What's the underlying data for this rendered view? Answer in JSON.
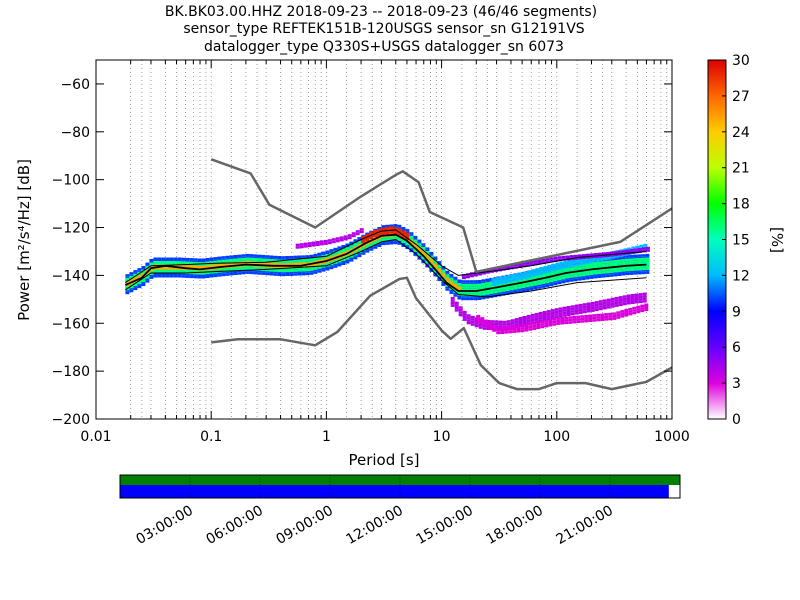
{
  "chart_data": [
    {
      "type": "heatmap",
      "title_lines": [
        "BK.BK03.00.HHZ   2018-09-23 -- 2018-09-23  (46/46 segments)",
        "sensor_type REFTEK151B-120USGS sensor_sn G12191VS",
        "datalogger_type Q330S+USGS datalogger_sn 6073"
      ],
      "xlabel": "Period [s]",
      "ylabel": "Power [m²/s⁴/Hz] [dB]",
      "x_scale": "log",
      "xlim": [
        0.01,
        1000
      ],
      "ylim": [
        -200,
        -50
      ],
      "x_ticks": [
        {
          "value": 0.01,
          "label": "0.01"
        },
        {
          "value": 0.1,
          "label": "0.1"
        },
        {
          "value": 1,
          "label": "1"
        },
        {
          "value": 10,
          "label": "10"
        },
        {
          "value": 100,
          "label": "100"
        },
        {
          "value": 1000,
          "label": "1000"
        }
      ],
      "y_ticks": [
        {
          "value": -60,
          "label": "−60"
        },
        {
          "value": -80,
          "label": "−80"
        },
        {
          "value": -100,
          "label": "−100"
        },
        {
          "value": -120,
          "label": "−120"
        },
        {
          "value": -140,
          "label": "−140"
        },
        {
          "value": -160,
          "label": "−160"
        },
        {
          "value": -180,
          "label": "−180"
        },
        {
          "value": -200,
          "label": "−200"
        }
      ],
      "grid": "dotted vertical at period bins",
      "colorbar": {
        "label": "[%]",
        "range": [
          0,
          30
        ],
        "ticks": [
          {
            "value": 0,
            "label": "0"
          },
          {
            "value": 3,
            "label": "3"
          },
          {
            "value": 6,
            "label": "6"
          },
          {
            "value": 9,
            "label": "9"
          },
          {
            "value": 12,
            "label": "12"
          },
          {
            "value": 15,
            "label": "15"
          },
          {
            "value": 18,
            "label": "18"
          },
          {
            "value": 21,
            "label": "21"
          },
          {
            "value": 24,
            "label": "24"
          },
          {
            "value": 27,
            "label": "27"
          },
          {
            "value": 30,
            "label": "30"
          }
        ]
      },
      "noise_models": [
        {
          "points": [
            [
              0.1,
              -91.5
            ],
            [
              0.22,
              -97.4
            ],
            [
              0.32,
              -110.5
            ],
            [
              0.8,
              -120
            ],
            [
              2.0,
              -107
            ],
            [
              4.0,
              -98
            ],
            [
              4.6,
              -96.5
            ],
            [
              6.3,
              -101
            ],
            [
              7.9,
              -113.5
            ],
            [
              15.4,
              -120
            ],
            [
              20,
              -138.5
            ],
            [
              354.8,
              -126
            ],
            [
              1000,
              -112
            ]
          ]
        },
        {
          "points": [
            [
              0.1,
              -168
            ],
            [
              0.17,
              -166.7
            ],
            [
              0.4,
              -166.7
            ],
            [
              0.8,
              -169.2
            ],
            [
              1.24,
              -163.7
            ],
            [
              2.4,
              -148.5
            ],
            [
              4.3,
              -141.5
            ],
            [
              5.0,
              -141
            ],
            [
              6.0,
              -149.5
            ],
            [
              10,
              -163
            ],
            [
              12,
              -166.5
            ],
            [
              15.6,
              -162
            ],
            [
              21.9,
              -177.5
            ],
            [
              31.6,
              -185
            ],
            [
              45,
              -187.5
            ],
            [
              70,
              -187.5
            ],
            [
              100,
              -185
            ],
            [
              178,
              -185
            ],
            [
              300,
              -187.5
            ],
            [
              600,
              -184.5
            ],
            [
              1000,
              -178.5
            ]
          ]
        }
      ],
      "mode_curve": [
        [
          0.018,
          -144
        ],
        [
          0.025,
          -141
        ],
        [
          0.03,
          -137
        ],
        [
          0.04,
          -136
        ],
        [
          0.06,
          -137
        ],
        [
          0.08,
          -137.5
        ],
        [
          0.12,
          -136.5
        ],
        [
          0.2,
          -135.5
        ],
        [
          0.35,
          -136
        ],
        [
          0.6,
          -136
        ],
        [
          1.0,
          -134
        ],
        [
          1.5,
          -131
        ],
        [
          2.2,
          -126.5
        ],
        [
          3.0,
          -123.5
        ],
        [
          4.0,
          -123
        ],
        [
          5.0,
          -125.5
        ],
        [
          7.0,
          -132
        ],
        [
          9.0,
          -138
        ],
        [
          11,
          -143
        ],
        [
          14,
          -146.5
        ],
        [
          20,
          -146.5
        ],
        [
          30,
          -145
        ],
        [
          50,
          -143
        ],
        [
          80,
          -141
        ],
        [
          120,
          -139
        ],
        [
          200,
          -137.5
        ],
        [
          400,
          -136
        ],
        [
          600,
          -135.5
        ]
      ],
      "percentile_low_curve": [
        [
          0.018,
          -146
        ],
        [
          0.03,
          -139
        ],
        [
          0.06,
          -139
        ],
        [
          0.1,
          -138.5
        ],
        [
          0.3,
          -137.5
        ],
        [
          1.0,
          -136
        ],
        [
          2.0,
          -130
        ],
        [
          3.0,
          -126
        ],
        [
          4.0,
          -125
        ],
        [
          6.0,
          -131
        ],
        [
          10,
          -142
        ],
        [
          14,
          -148
        ],
        [
          25,
          -149
        ],
        [
          60,
          -146.5
        ],
        [
          150,
          -143
        ],
        [
          600,
          -141
        ]
      ],
      "percentile_high_curve": [
        [
          0.018,
          -143
        ],
        [
          0.03,
          -136
        ],
        [
          0.06,
          -135.5
        ],
        [
          0.1,
          -135
        ],
        [
          0.3,
          -134.5
        ],
        [
          1.0,
          -132
        ],
        [
          2.0,
          -125
        ],
        [
          3.0,
          -121.5
        ],
        [
          4.0,
          -121
        ],
        [
          6.0,
          -127
        ],
        [
          10,
          -136
        ],
        [
          14,
          -140
        ],
        [
          25,
          -138.5
        ],
        [
          60,
          -136
        ],
        [
          150,
          -132.5
        ],
        [
          600,
          -130
        ]
      ],
      "density_bands": [
        {
          "center": [
            [
              0.018,
              -143.5
            ],
            [
              0.025,
              -140
            ],
            [
              0.03,
              -136.5
            ],
            [
              0.05,
              -136.5
            ],
            [
              0.08,
              -137
            ],
            [
              0.12,
              -136
            ],
            [
              0.2,
              -135
            ],
            [
              0.4,
              -136
            ],
            [
              0.7,
              -135.5
            ],
            [
              1.0,
              -133.5
            ],
            [
              1.5,
              -130.5
            ],
            [
              2.2,
              -126
            ],
            [
              3.0,
              -123
            ],
            [
              4.0,
              -122.5
            ],
            [
              5.0,
              -125
            ],
            [
              7.0,
              -131.5
            ],
            [
              9.0,
              -137.5
            ],
            [
              11,
              -142.5
            ],
            [
              14,
              -146
            ],
            [
              20,
              -146
            ],
            [
              30,
              -144.5
            ],
            [
              50,
              -142.5
            ],
            [
              80,
              -140.5
            ],
            [
              120,
              -138.5
            ],
            [
              200,
              -137
            ],
            [
              400,
              -135.5
            ],
            [
              600,
              -135
            ]
          ],
          "halfwidth": 4,
          "percent": 10
        },
        {
          "center": [
            [
              0.018,
              -143.5
            ],
            [
              0.025,
              -140
            ],
            [
              0.03,
              -136.5
            ],
            [
              0.05,
              -136.5
            ],
            [
              0.08,
              -137
            ],
            [
              0.12,
              -136
            ],
            [
              0.2,
              -135
            ],
            [
              0.4,
              -136
            ],
            [
              0.7,
              -135.5
            ],
            [
              1.0,
              -133.5
            ],
            [
              1.5,
              -130.5
            ],
            [
              2.2,
              -126
            ],
            [
              3.0,
              -123
            ],
            [
              4.0,
              -122.5
            ],
            [
              5.0,
              -125
            ],
            [
              7.0,
              -131.5
            ],
            [
              9.0,
              -137.5
            ],
            [
              11,
              -142.5
            ],
            [
              14,
              -146
            ],
            [
              20,
              -146
            ],
            [
              30,
              -144.5
            ],
            [
              50,
              -142.5
            ],
            [
              80,
              -140.5
            ],
            [
              120,
              -138.5
            ],
            [
              200,
              -137
            ],
            [
              400,
              -135.5
            ],
            [
              600,
              -135
            ]
          ],
          "halfwidth": 2.5,
          "percent": 16
        },
        {
          "center": [
            [
              0.018,
              -143.5
            ],
            [
              0.025,
              -140
            ],
            [
              0.03,
              -136.5
            ],
            [
              0.05,
              -136.5
            ],
            [
              0.08,
              -137
            ],
            [
              0.12,
              -136
            ],
            [
              0.2,
              -135
            ],
            [
              0.4,
              -136
            ],
            [
              0.7,
              -135.5
            ],
            [
              1.0,
              -133.5
            ],
            [
              1.5,
              -130.5
            ],
            [
              2.2,
              -126
            ],
            [
              3.0,
              -123
            ],
            [
              4.0,
              -122.5
            ],
            [
              5.0,
              -125
            ],
            [
              7.0,
              -131.5
            ],
            [
              9.0,
              -137.5
            ],
            [
              11,
              -142.5
            ],
            [
              14,
              -146
            ]
          ],
          "halfwidth": 1,
          "percent": 25
        },
        {
          "center": [
            [
              2.0,
              -125
            ],
            [
              2.5,
              -122.5
            ],
            [
              3.0,
              -121.5
            ],
            [
              3.5,
              -121
            ],
            [
              4.0,
              -121.5
            ],
            [
              5.0,
              -124
            ]
          ],
          "halfwidth": 1.5,
          "percent": 29
        },
        {
          "center": [
            [
              12,
              -151
            ],
            [
              16,
              -158
            ],
            [
              22,
              -160.5
            ],
            [
              35,
              -161
            ],
            [
              60,
              -158
            ],
            [
              100,
              -155.5
            ],
            [
              200,
              -153
            ],
            [
              400,
              -150
            ],
            [
              600,
              -149
            ]
          ],
          "halfwidth": 2,
          "percent": 4
        },
        {
          "center": [
            [
              20,
              -158
            ],
            [
              30,
              -163
            ],
            [
              50,
              -162
            ],
            [
              100,
              -159
            ],
            [
              300,
              -157
            ],
            [
              600,
              -153
            ]
          ],
          "halfwidth": 1.5,
          "percent": 3
        },
        {
          "center": [
            [
              25,
              -143
            ],
            [
              50,
              -140
            ],
            [
              100,
              -136
            ],
            [
              200,
              -133
            ],
            [
              400,
              -130
            ],
            [
              600,
              -128
            ]
          ],
          "halfwidth": 1.5,
          "percent": 12
        },
        {
          "center": [
            [
              15,
              -140.5
            ],
            [
              25,
              -138
            ],
            [
              50,
              -135.5
            ],
            [
              100,
              -133
            ],
            [
              300,
              -131
            ],
            [
              600,
              -129
            ]
          ],
          "halfwidth": 1,
          "percent": 5
        },
        {
          "center": [
            [
              0.5,
              -128
            ],
            [
              1.0,
              -126
            ],
            [
              1.5,
              -124
            ],
            [
              2.0,
              -121
            ]
          ],
          "halfwidth": 1,
          "percent": 4
        }
      ],
      "data_availability": {
        "time_ticks": [
          "03:00:00",
          "06:00:00",
          "09:00:00",
          "12:00:00",
          "15:00:00",
          "18:00:00",
          "21:00:00"
        ],
        "coverage_fraction": 0.98,
        "colors": {
          "available": "#008000",
          "gap": "#0000ff"
        }
      }
    }
  ]
}
